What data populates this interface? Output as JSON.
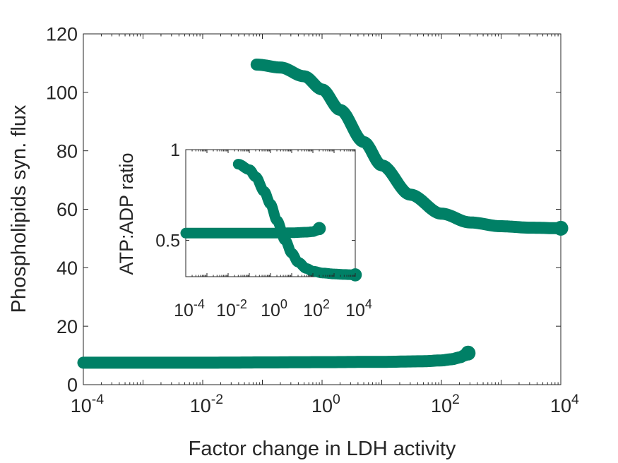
{
  "chart_data": [
    {
      "type": "line",
      "xlabel": "Factor change in LDH activity",
      "ylabel": "Phospholipids syn. flux",
      "xscale": "log",
      "xlim": [
        0.0001,
        10000
      ],
      "ylim": [
        0,
        120
      ],
      "grid": false,
      "color": "#008066",
      "x_ticks": [
        {
          "base": "10",
          "exp": "-4"
        },
        {
          "base": "10",
          "exp": "-2"
        },
        {
          "base": "10",
          "exp": "0"
        },
        {
          "base": "10",
          "exp": "2"
        },
        {
          "base": "10",
          "exp": "4"
        }
      ],
      "y_ticks": [
        "0",
        "20",
        "40",
        "60",
        "80",
        "100",
        "120"
      ],
      "series": [
        {
          "x": [
            0.0001,
            0.001,
            0.01,
            0.1,
            1,
            10,
            50,
            100,
            150,
            200,
            250,
            280
          ],
          "y": [
            7.5,
            7.5,
            7.5,
            7.6,
            7.7,
            7.8,
            8.0,
            8.3,
            8.7,
            9.3,
            10.1,
            10.8
          ]
        },
        {
          "x": [
            0.08,
            0.2,
            0.5,
            1,
            2,
            5,
            10,
            30,
            100,
            300,
            1000,
            3000,
            10000
          ],
          "y": [
            109.5,
            108.5,
            105.5,
            101,
            94,
            83,
            75,
            65,
            58.5,
            55.5,
            54.2,
            53.7,
            53.5
          ]
        }
      ]
    },
    {
      "type": "line",
      "inset": true,
      "xlabel": "",
      "ylabel": "ATP:ADP ratio",
      "xscale": "log",
      "xlim": [
        0.0001,
        10000
      ],
      "ylim": [
        0.3,
        1.0
      ],
      "grid": false,
      "color": "#008066",
      "x_ticks": [
        {
          "base": "10",
          "exp": "-4"
        },
        {
          "base": "10",
          "exp": "-2"
        },
        {
          "base": "10",
          "exp": "0"
        },
        {
          "base": "10",
          "exp": "2"
        },
        {
          "base": "10",
          "exp": "4"
        }
      ],
      "y_ticks": [
        "0.5",
        "1"
      ],
      "series": [
        {
          "x": [
            0.0001,
            0.001,
            0.01,
            0.1,
            1,
            10,
            50,
            100,
            150,
            200
          ],
          "y": [
            0.54,
            0.54,
            0.54,
            0.54,
            0.54,
            0.542,
            0.545,
            0.548,
            0.555,
            0.565
          ]
        },
        {
          "x": [
            0.03,
            0.1,
            0.2,
            0.5,
            1,
            2,
            5,
            10,
            20,
            50,
            100,
            300,
            1000,
            3000,
            10000
          ],
          "y": [
            0.92,
            0.89,
            0.85,
            0.77,
            0.7,
            0.61,
            0.5,
            0.43,
            0.38,
            0.345,
            0.33,
            0.32,
            0.315,
            0.312,
            0.31
          ]
        }
      ]
    }
  ]
}
